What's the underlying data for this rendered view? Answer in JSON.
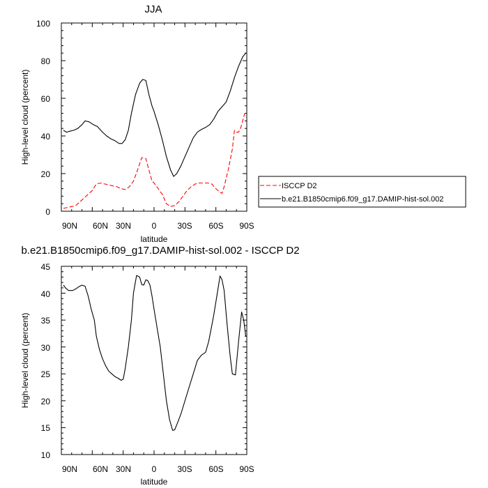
{
  "chart_data": [
    {
      "type": "line",
      "title": "JJA",
      "xlabel": "latitude",
      "ylabel": "High-level cloud (percent)",
      "xlim": [
        90,
        -90
      ],
      "ylim": [
        0,
        100
      ],
      "x_tick_labels": [
        "90N",
        "60N",
        "30N",
        "0",
        "30S",
        "60S",
        "90S"
      ],
      "y_tick_labels": [
        "0",
        "20",
        "40",
        "60",
        "80",
        "100"
      ],
      "legend_position": "right",
      "grid": false,
      "series": [
        {
          "name": "ISCCP D2",
          "color": "#ff0000",
          "dash": "dashed",
          "x": [
            88,
            84,
            80,
            76,
            72,
            68,
            64,
            60,
            56,
            52,
            48,
            44,
            40,
            36,
            32,
            28,
            24,
            20,
            16,
            12,
            8,
            5,
            2,
            0,
            -4,
            -8,
            -12,
            -16,
            -20,
            -24,
            -28,
            -32,
            -36,
            -40,
            -44,
            -48,
            -52,
            -56,
            -60,
            -64,
            -66,
            -68,
            -72,
            -76,
            -78,
            -80,
            -82,
            -84,
            -86,
            -88
          ],
          "y": [
            1.5,
            2,
            2.5,
            3,
            5,
            7,
            9,
            11,
            14.5,
            15,
            14.5,
            14,
            13.5,
            13,
            12,
            11.5,
            13,
            16,
            22,
            28.5,
            28,
            22,
            16,
            15,
            12,
            9,
            4,
            2.5,
            3,
            5,
            8,
            11,
            13,
            14.5,
            15,
            15,
            15,
            14.5,
            12,
            10,
            9.5,
            13,
            22,
            33,
            43,
            42,
            42,
            44,
            48,
            52
          ]
        },
        {
          "name": "b.e21.B1850cmip6.f09_g17.DAMIP-hist-sol.002",
          "color": "#000000",
          "dash": "solid",
          "x": [
            88,
            85,
            82,
            78,
            74,
            70,
            67,
            63,
            59,
            55,
            50,
            46,
            42,
            38,
            34,
            31,
            28,
            25,
            22,
            18,
            14,
            11,
            8,
            5,
            2,
            0,
            -4,
            -8,
            -12,
            -16,
            -19,
            -22,
            -26,
            -30,
            -34,
            -38,
            -42,
            -46,
            -50,
            -54,
            -58,
            -62,
            -66,
            -70,
            -74,
            -78,
            -82,
            -86,
            -89
          ],
          "y": [
            43,
            42,
            42.5,
            43,
            44,
            46,
            48,
            47.5,
            46,
            45,
            42,
            40,
            38.5,
            37.5,
            36,
            36,
            38,
            43,
            52,
            62,
            68,
            70,
            69.5,
            62,
            56,
            53,
            46,
            38,
            29,
            22,
            18.5,
            20,
            24,
            29,
            34,
            39,
            42,
            43.5,
            44.5,
            46,
            49,
            53,
            55.5,
            58,
            64,
            71,
            77,
            82,
            84
          ]
        }
      ]
    },
    {
      "type": "line",
      "title": "b.e21.B1850cmip6.f09_g17.DAMIP-hist-sol.002 - ISCCP D2",
      "xlabel": "latitude",
      "ylabel": "High-level cloud (percent)",
      "xlim": [
        90,
        -90
      ],
      "ylim": [
        10,
        45
      ],
      "x_tick_labels": [
        "90N",
        "60N",
        "30N",
        "0",
        "30S",
        "60S",
        "90S"
      ],
      "y_tick_labels": [
        "10",
        "15",
        "20",
        "25",
        "30",
        "35",
        "40",
        "45"
      ],
      "grid": false,
      "series": [
        {
          "color": "#000000",
          "dash": "solid",
          "x": [
            88,
            86,
            83,
            79,
            76,
            73,
            70,
            67,
            64,
            61,
            58,
            56,
            53,
            50,
            47,
            44,
            41,
            38,
            35,
            32,
            30,
            28,
            25,
            22,
            20,
            17,
            14,
            12,
            10,
            8,
            6,
            4,
            2,
            0,
            -3,
            -6,
            -9,
            -12,
            -15,
            -18,
            -20,
            -23,
            -26,
            -30,
            -34,
            -38,
            -42,
            -46,
            -50,
            -53,
            -56,
            -58,
            -61,
            -64,
            -66,
            -68,
            -71,
            -74,
            -76,
            -79,
            -82,
            -85,
            -87,
            -89
          ],
          "y": [
            41.5,
            41,
            40.5,
            40.5,
            40.8,
            41.2,
            41.5,
            41.3,
            39.5,
            37,
            35,
            32,
            29.5,
            27.8,
            26.5,
            25.5,
            25,
            24.5,
            24.2,
            23.8,
            24,
            26,
            30,
            35,
            40,
            43.3,
            43,
            41.6,
            41.5,
            42.5,
            42.3,
            41.5,
            39.5,
            37,
            33.5,
            30,
            25,
            20,
            16.5,
            14.5,
            14.6,
            16,
            17.5,
            20,
            22.5,
            25,
            27.5,
            28.5,
            29,
            31,
            34,
            36,
            39.5,
            43.2,
            42.5,
            40.5,
            34,
            28,
            25,
            24.8,
            31,
            36.5,
            35,
            32
          ]
        }
      ]
    }
  ]
}
